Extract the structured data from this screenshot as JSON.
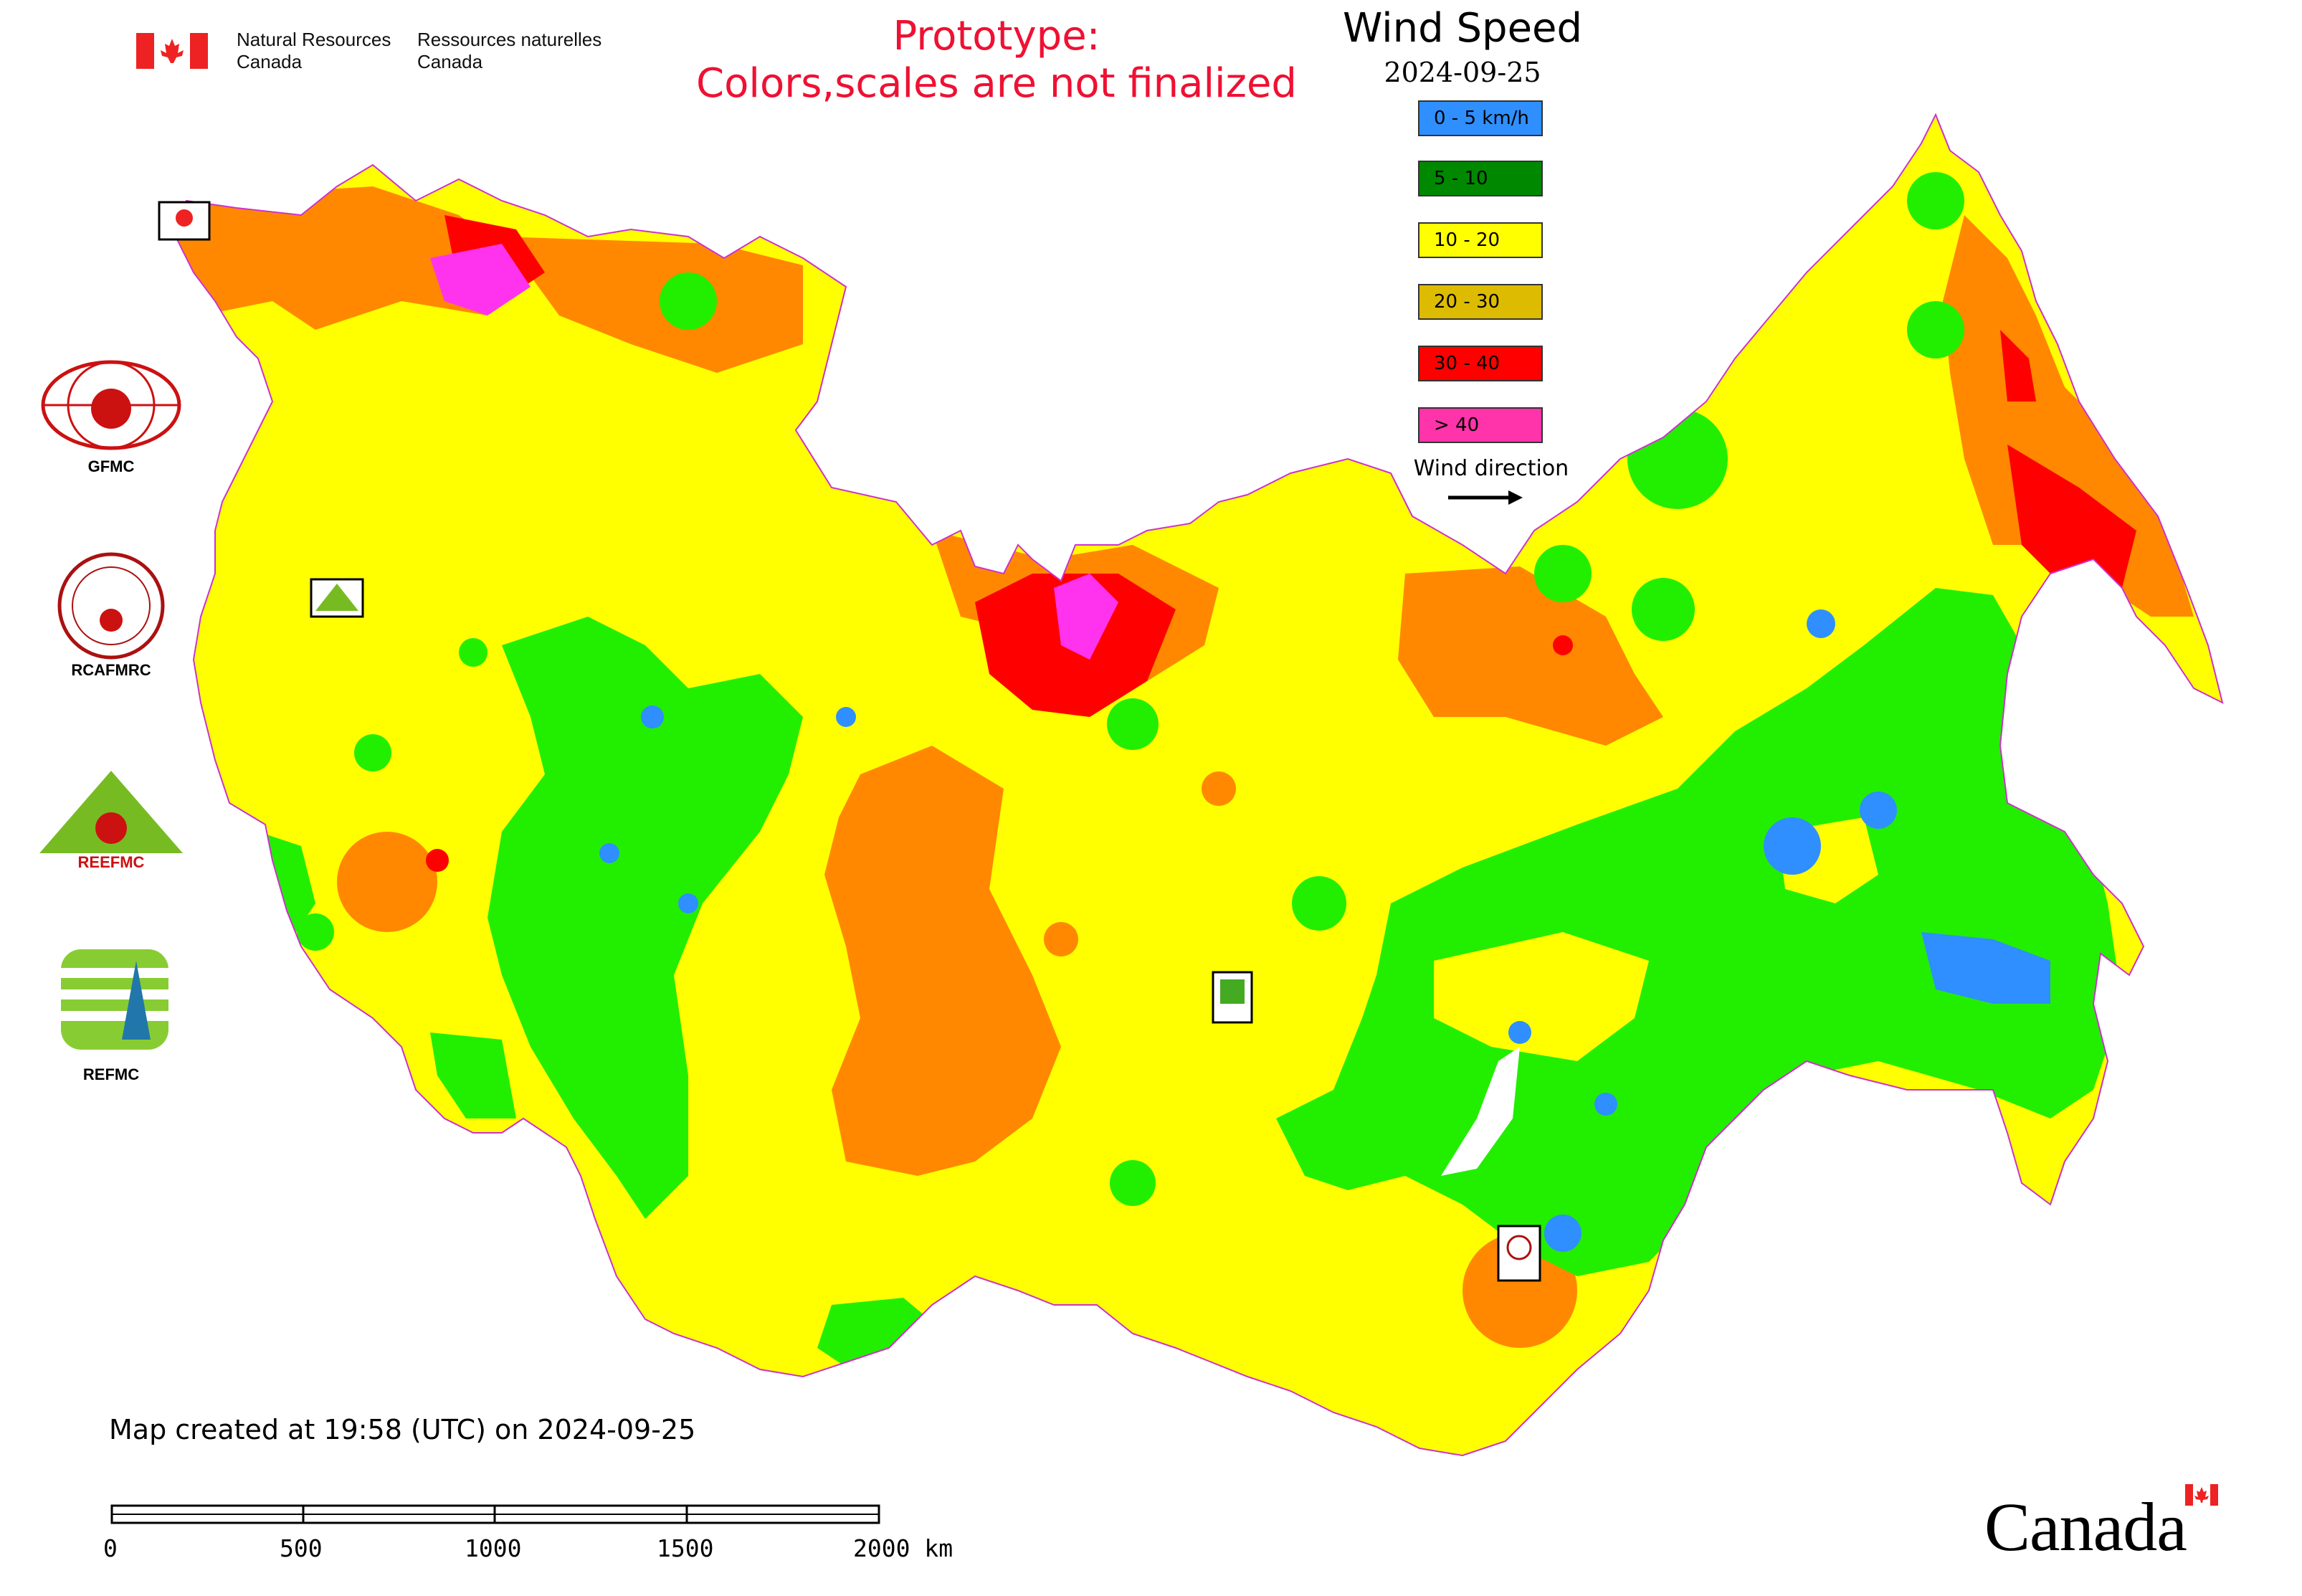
{
  "header": {
    "nrcan_en": "Natural Resources\nCanada",
    "nrcan_fr": "Ressources naturelles\nCanada",
    "prototype_line1": "Prototype:",
    "prototype_line2": "Colors,scales are not finalized"
  },
  "legend": {
    "title": "Wind Speed",
    "date": "2024-09-25",
    "items": [
      {
        "label": "0 - 5 km/h",
        "color": "#2f8fff"
      },
      {
        "label": "5 - 10",
        "color": "#008800"
      },
      {
        "label": "10 - 20",
        "color": "#ffff00"
      },
      {
        "label": "20 - 30",
        "color": "#ddbb00"
      },
      {
        "label": "30 - 40",
        "color": "#ff0000"
      },
      {
        "label": "> 40",
        "color": "#ff33aa"
      }
    ],
    "wind_direction_label": "Wind direction"
  },
  "map_colors": {
    "calm": "#2f8fff",
    "light": "#22ee00",
    "moderate": "#ffff00",
    "fresh": "#ff8800",
    "strong": "#ff0000",
    "gale": "#ff33ee"
  },
  "logos": [
    {
      "name": "GFMC",
      "icon": "gfmc-logo"
    },
    {
      "name": "RCAFMRC",
      "icon": "rcafmrc-logo"
    },
    {
      "name": "REEFMC",
      "icon": "reefmc-triangle-logo"
    },
    {
      "name": "REFMC",
      "icon": "refmc-logo"
    }
  ],
  "footer": {
    "created": "Map created at 19:58 (UTC) on 2024-09-25",
    "scale_labels": [
      "0",
      "500",
      "1000",
      "1500",
      "2000 km"
    ],
    "wordmark": "Canada"
  }
}
